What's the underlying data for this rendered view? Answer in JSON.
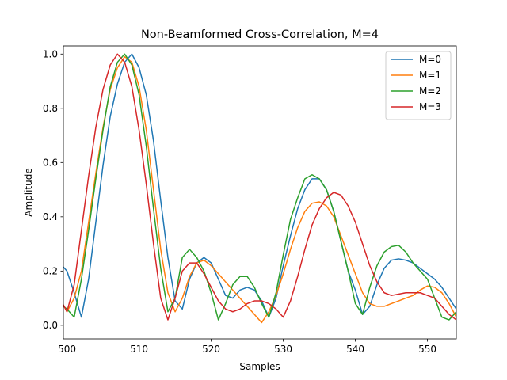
{
  "chart_data": {
    "type": "line",
    "title": "Non-Beamformed Cross-Correlation, M=4",
    "xlabel": "Samples",
    "ylabel": "Amplitude",
    "xlim": [
      499.5,
      554
    ],
    "ylim": [
      -0.05,
      1.03
    ],
    "xticks": [
      500,
      510,
      520,
      530,
      540,
      550
    ],
    "yticks": [
      0.0,
      0.2,
      0.4,
      0.6,
      0.8,
      1.0
    ],
    "grid": false,
    "legend_position": "top-right",
    "x": [
      499,
      500,
      501,
      502,
      503,
      504,
      505,
      506,
      507,
      508,
      509,
      510,
      511,
      512,
      513,
      514,
      515,
      516,
      517,
      518,
      519,
      520,
      521,
      522,
      523,
      524,
      525,
      526,
      527,
      528,
      529,
      530,
      531,
      532,
      533,
      534,
      535,
      536,
      537,
      538,
      539,
      540,
      541,
      542,
      543,
      544,
      545,
      546,
      547,
      548,
      549,
      550,
      551,
      552,
      553,
      554,
      555
    ],
    "series": [
      {
        "name": "M=0",
        "color": "#1f77b4",
        "values": [
          0.23,
          0.2,
          0.12,
          0.03,
          0.17,
          0.38,
          0.59,
          0.77,
          0.89,
          0.97,
          1.0,
          0.95,
          0.85,
          0.68,
          0.46,
          0.25,
          0.09,
          0.06,
          0.17,
          0.23,
          0.25,
          0.23,
          0.17,
          0.11,
          0.1,
          0.13,
          0.14,
          0.13,
          0.09,
          0.03,
          0.1,
          0.22,
          0.33,
          0.43,
          0.5,
          0.54,
          0.54,
          0.5,
          0.42,
          0.31,
          0.2,
          0.13,
          0.04,
          0.07,
          0.15,
          0.21,
          0.24,
          0.245,
          0.24,
          0.23,
          0.21,
          0.19,
          0.17,
          0.14,
          0.1,
          0.06,
          0.02
        ]
      },
      {
        "name": "M=1",
        "color": "#ff7f0e",
        "values": [
          0.1,
          0.05,
          0.1,
          0.2,
          0.38,
          0.56,
          0.73,
          0.87,
          0.95,
          0.99,
          0.97,
          0.88,
          0.72,
          0.5,
          0.28,
          0.12,
          0.05,
          0.1,
          0.18,
          0.23,
          0.24,
          0.22,
          0.19,
          0.16,
          0.13,
          0.1,
          0.07,
          0.04,
          0.01,
          0.05,
          0.11,
          0.19,
          0.28,
          0.36,
          0.42,
          0.45,
          0.455,
          0.44,
          0.4,
          0.33,
          0.26,
          0.19,
          0.12,
          0.08,
          0.07,
          0.07,
          0.08,
          0.09,
          0.1,
          0.11,
          0.13,
          0.145,
          0.14,
          0.12,
          0.08,
          0.03,
          0.01
        ]
      },
      {
        "name": "M=2",
        "color": "#2ca02c",
        "values": [
          0.08,
          0.06,
          0.03,
          0.17,
          0.35,
          0.54,
          0.72,
          0.88,
          0.97,
          1.0,
          0.96,
          0.85,
          0.66,
          0.43,
          0.21,
          0.05,
          0.1,
          0.25,
          0.28,
          0.25,
          0.2,
          0.12,
          0.02,
          0.08,
          0.15,
          0.18,
          0.18,
          0.14,
          0.08,
          0.03,
          0.12,
          0.26,
          0.39,
          0.47,
          0.54,
          0.555,
          0.54,
          0.5,
          0.42,
          0.31,
          0.2,
          0.08,
          0.04,
          0.14,
          0.22,
          0.27,
          0.29,
          0.295,
          0.27,
          0.23,
          0.2,
          0.17,
          0.1,
          0.03,
          0.02,
          0.05,
          0.02
        ]
      },
      {
        "name": "M=3",
        "color": "#d62728",
        "values": [
          0.1,
          0.05,
          0.15,
          0.35,
          0.55,
          0.73,
          0.87,
          0.96,
          1.0,
          0.97,
          0.88,
          0.72,
          0.52,
          0.3,
          0.1,
          0.02,
          0.1,
          0.2,
          0.23,
          0.23,
          0.19,
          0.14,
          0.09,
          0.06,
          0.05,
          0.06,
          0.08,
          0.09,
          0.09,
          0.08,
          0.06,
          0.03,
          0.09,
          0.18,
          0.28,
          0.37,
          0.43,
          0.47,
          0.49,
          0.48,
          0.44,
          0.38,
          0.3,
          0.22,
          0.16,
          0.12,
          0.11,
          0.115,
          0.12,
          0.12,
          0.12,
          0.11,
          0.1,
          0.07,
          0.04,
          0.02,
          0.01
        ]
      }
    ]
  }
}
